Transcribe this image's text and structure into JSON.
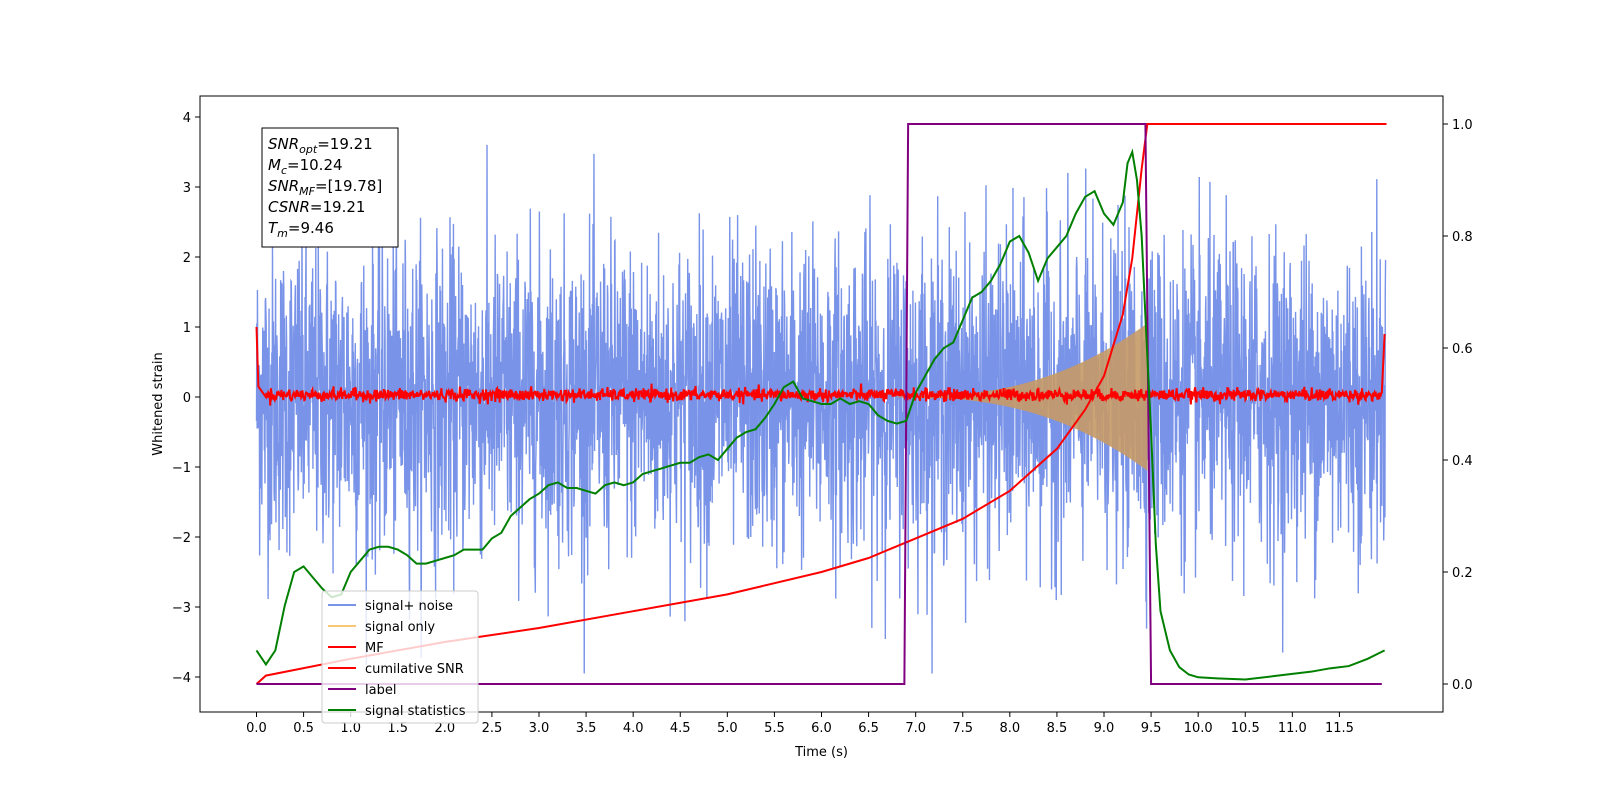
{
  "chart_data": {
    "type": "line",
    "xlabel": "Time (s)",
    "ylabel": "Whitened strain",
    "xlim": [
      -0.6,
      12.6
    ],
    "ylim": [
      -4.5,
      4.3
    ],
    "y2lim": [
      -0.05,
      1.05
    ],
    "xticks": [
      "0.0",
      "0.5",
      "1.0",
      "1.5",
      "2.0",
      "2.5",
      "3.0",
      "3.5",
      "4.0",
      "4.5",
      "5.0",
      "5.5",
      "6.0",
      "6.5",
      "7.0",
      "7.5",
      "8.0",
      "8.5",
      "9.0",
      "9.5",
      "10.0",
      "10.5",
      "11.0",
      "11.5"
    ],
    "yticks": [
      4,
      3,
      2,
      1,
      0,
      -1,
      -2,
      -3,
      -4
    ],
    "y2ticks": [
      "1.0",
      "0.8",
      "0.6",
      "0.4",
      "0.2",
      "0.0"
    ],
    "grid": false,
    "legend_position": "lower-left",
    "annotation_box": {
      "lines": [
        {
          "sym": "SNR",
          "sub": "opt",
          "val": "=19.21"
        },
        {
          "sym": "M",
          "sub": "c",
          "val": "=10.24"
        },
        {
          "sym": "SNR",
          "sub": "MF",
          "val": "=[19.78]"
        },
        {
          "sym": "CSNR",
          "sub": "",
          "val": "=19.21"
        },
        {
          "sym": "T",
          "sub": "m",
          "val": "=9.46"
        }
      ]
    },
    "series": [
      {
        "name": "signal+ noise",
        "color": "#7893e8",
        "axis": "left",
        "description_values": {
          "x_range": [
            0,
            11.99
          ],
          "typical_amplitude": 1.1,
          "max_peak": 3.95
        }
      },
      {
        "name": "signal only",
        "color": "#f5c777",
        "axis": "left",
        "chirp": {
          "start_time": 6.8,
          "end_time": 9.46,
          "max_amplitude": 1.05
        }
      },
      {
        "name": "MF",
        "color": "#ff0000",
        "axis": "left",
        "points": [
          [
            0.0,
            1.0
          ],
          [
            0.02,
            0.15
          ],
          [
            0.1,
            0.03
          ],
          [
            11.95,
            0.03
          ],
          [
            11.98,
            0.9
          ]
        ]
      },
      {
        "name": "cumilative SNR",
        "color": "#ff0000",
        "axis": "right",
        "points": [
          [
            0.0,
            0.0
          ],
          [
            0.1,
            0.015
          ],
          [
            1.0,
            0.045
          ],
          [
            2.0,
            0.075
          ],
          [
            3.0,
            0.1
          ],
          [
            4.0,
            0.13
          ],
          [
            5.0,
            0.16
          ],
          [
            6.0,
            0.2
          ],
          [
            6.5,
            0.225
          ],
          [
            7.0,
            0.26
          ],
          [
            7.5,
            0.295
          ],
          [
            8.0,
            0.345
          ],
          [
            8.5,
            0.42
          ],
          [
            8.8,
            0.49
          ],
          [
            9.0,
            0.55
          ],
          [
            9.2,
            0.66
          ],
          [
            9.3,
            0.76
          ],
          [
            9.4,
            0.92
          ],
          [
            9.46,
            1.0
          ],
          [
            12.0,
            1.0
          ]
        ]
      },
      {
        "name": "label",
        "color": "#800080",
        "axis": "right",
        "points": [
          [
            0.0,
            0.0
          ],
          [
            6.88,
            0.0
          ],
          [
            6.92,
            1.0
          ],
          [
            9.44,
            1.0
          ],
          [
            9.5,
            0.0
          ],
          [
            11.95,
            0.0
          ]
        ]
      },
      {
        "name": "signal statistics",
        "color": "#008000",
        "axis": "right",
        "points": [
          [
            0.0,
            0.06
          ],
          [
            0.1,
            0.035
          ],
          [
            0.2,
            0.06
          ],
          [
            0.3,
            0.14
          ],
          [
            0.4,
            0.2
          ],
          [
            0.5,
            0.21
          ],
          [
            0.6,
            0.19
          ],
          [
            0.7,
            0.17
          ],
          [
            0.8,
            0.155
          ],
          [
            0.9,
            0.16
          ],
          [
            1.0,
            0.2
          ],
          [
            1.1,
            0.22
          ],
          [
            1.2,
            0.24
          ],
          [
            1.3,
            0.245
          ],
          [
            1.4,
            0.245
          ],
          [
            1.5,
            0.24
          ],
          [
            1.6,
            0.23
          ],
          [
            1.7,
            0.215
          ],
          [
            1.8,
            0.215
          ],
          [
            1.9,
            0.22
          ],
          [
            2.0,
            0.225
          ],
          [
            2.1,
            0.23
          ],
          [
            2.2,
            0.24
          ],
          [
            2.3,
            0.24
          ],
          [
            2.4,
            0.24
          ],
          [
            2.5,
            0.26
          ],
          [
            2.6,
            0.27
          ],
          [
            2.7,
            0.3
          ],
          [
            2.8,
            0.315
          ],
          [
            2.9,
            0.33
          ],
          [
            3.0,
            0.34
          ],
          [
            3.1,
            0.355
          ],
          [
            3.2,
            0.36
          ],
          [
            3.3,
            0.35
          ],
          [
            3.4,
            0.35
          ],
          [
            3.5,
            0.345
          ],
          [
            3.6,
            0.34
          ],
          [
            3.7,
            0.355
          ],
          [
            3.8,
            0.36
          ],
          [
            3.9,
            0.355
          ],
          [
            4.0,
            0.36
          ],
          [
            4.1,
            0.375
          ],
          [
            4.2,
            0.38
          ],
          [
            4.3,
            0.385
          ],
          [
            4.4,
            0.39
          ],
          [
            4.5,
            0.395
          ],
          [
            4.6,
            0.395
          ],
          [
            4.7,
            0.405
          ],
          [
            4.8,
            0.41
          ],
          [
            4.9,
            0.4
          ],
          [
            5.0,
            0.42
          ],
          [
            5.1,
            0.44
          ],
          [
            5.2,
            0.45
          ],
          [
            5.3,
            0.455
          ],
          [
            5.4,
            0.475
          ],
          [
            5.5,
            0.5
          ],
          [
            5.6,
            0.53
          ],
          [
            5.7,
            0.54
          ],
          [
            5.8,
            0.51
          ],
          [
            5.9,
            0.505
          ],
          [
            6.0,
            0.5
          ],
          [
            6.1,
            0.5
          ],
          [
            6.2,
            0.51
          ],
          [
            6.3,
            0.5
          ],
          [
            6.4,
            0.505
          ],
          [
            6.5,
            0.5
          ],
          [
            6.6,
            0.48
          ],
          [
            6.7,
            0.47
          ],
          [
            6.8,
            0.465
          ],
          [
            6.9,
            0.47
          ],
          [
            7.0,
            0.52
          ],
          [
            7.1,
            0.55
          ],
          [
            7.2,
            0.58
          ],
          [
            7.3,
            0.6
          ],
          [
            7.4,
            0.61
          ],
          [
            7.5,
            0.65
          ],
          [
            7.6,
            0.69
          ],
          [
            7.7,
            0.7
          ],
          [
            7.8,
            0.72
          ],
          [
            7.9,
            0.75
          ],
          [
            8.0,
            0.79
          ],
          [
            8.1,
            0.8
          ],
          [
            8.2,
            0.77
          ],
          [
            8.3,
            0.72
          ],
          [
            8.4,
            0.76
          ],
          [
            8.5,
            0.78
          ],
          [
            8.6,
            0.8
          ],
          [
            8.7,
            0.84
          ],
          [
            8.8,
            0.87
          ],
          [
            8.9,
            0.88
          ],
          [
            9.0,
            0.84
          ],
          [
            9.1,
            0.82
          ],
          [
            9.2,
            0.86
          ],
          [
            9.25,
            0.93
          ],
          [
            9.3,
            0.95
          ],
          [
            9.35,
            0.9
          ],
          [
            9.4,
            0.8
          ],
          [
            9.45,
            0.62
          ],
          [
            9.5,
            0.45
          ],
          [
            9.55,
            0.25
          ],
          [
            9.6,
            0.13
          ],
          [
            9.7,
            0.06
          ],
          [
            9.8,
            0.03
          ],
          [
            9.9,
            0.017
          ],
          [
            10.0,
            0.012
          ],
          [
            10.2,
            0.01
          ],
          [
            10.5,
            0.008
          ],
          [
            10.8,
            0.014
          ],
          [
            11.0,
            0.018
          ],
          [
            11.2,
            0.022
          ],
          [
            11.4,
            0.028
          ],
          [
            11.6,
            0.032
          ],
          [
            11.8,
            0.045
          ],
          [
            11.98,
            0.06
          ]
        ]
      }
    ]
  }
}
